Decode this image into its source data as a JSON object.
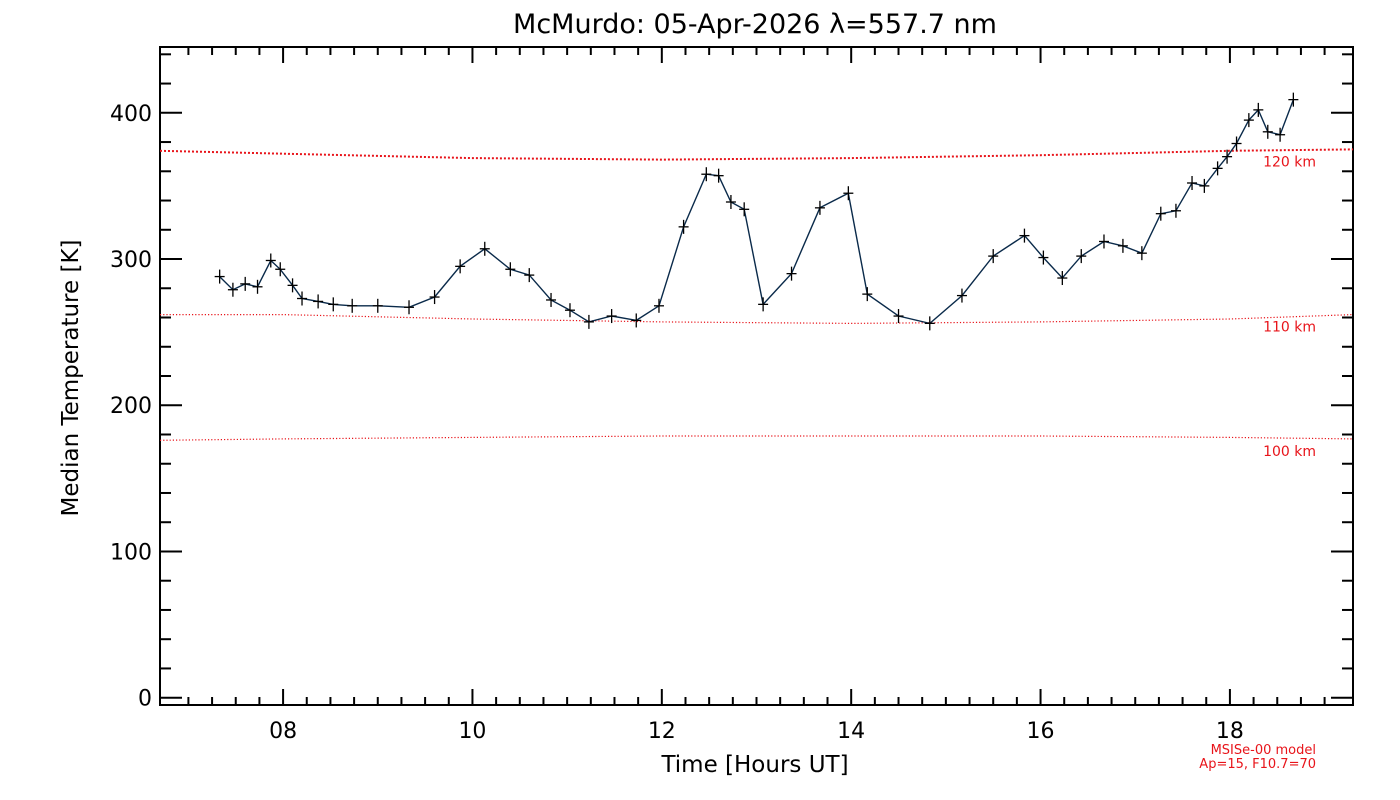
{
  "chart_data": {
    "type": "line",
    "title": "McMurdo: 05-Apr-2026 λ=557.7 nm",
    "xlabel": "Time [Hours UT]",
    "ylabel": "Median Temperature [K]",
    "xlim": [
      6.7,
      19.3
    ],
    "ylim": [
      -5,
      445
    ],
    "x_ticks": [
      8,
      10,
      12,
      14,
      16,
      18
    ],
    "x_tick_labels": [
      "08",
      "10",
      "12",
      "14",
      "16",
      "18"
    ],
    "y_ticks": [
      0,
      100,
      200,
      300,
      400
    ],
    "y_tick_labels": [
      "0",
      "100",
      "200",
      "300",
      "400"
    ],
    "grid": false,
    "series": [
      {
        "color": "#0a2a4a",
        "marker": "plus",
        "x": [
          7.33,
          7.47,
          7.6,
          7.73,
          7.87,
          7.97,
          8.1,
          8.2,
          8.37,
          8.53,
          8.73,
          9.0,
          9.33,
          9.6,
          9.87,
          10.13,
          10.4,
          10.6,
          10.83,
          11.03,
          11.23,
          11.47,
          11.73,
          11.97,
          12.23,
          12.47,
          12.6,
          12.73,
          12.87,
          13.07,
          13.37,
          13.67,
          13.97,
          14.17,
          14.5,
          14.83,
          15.17,
          15.5,
          15.83,
          16.03,
          16.23,
          16.43,
          16.67,
          16.87,
          17.07,
          17.27,
          17.43,
          17.6,
          17.73,
          17.87,
          17.97,
          18.07,
          18.2,
          18.3,
          18.4,
          18.53,
          18.67
        ],
        "y": [
          288,
          279,
          283,
          281,
          299,
          293,
          282,
          273,
          271,
          269,
          268,
          268,
          267,
          274,
          295,
          307,
          293,
          289,
          272,
          265,
          257,
          261,
          258,
          268,
          322,
          358,
          357,
          339,
          334,
          269,
          290,
          335,
          345,
          276,
          261,
          256,
          275,
          302,
          316,
          301,
          287,
          302,
          312,
          309,
          304,
          331,
          333,
          352,
          350,
          362,
          370,
          379,
          395,
          402,
          387,
          385,
          409
        ]
      }
    ],
    "model_curves": [
      {
        "label": "120 km",
        "color": "#e8141a",
        "x": [
          6.7,
          8,
          10,
          12,
          14,
          16,
          18,
          19.3
        ],
        "y": [
          374,
          372,
          369,
          368,
          369,
          371,
          374,
          375
        ]
      },
      {
        "label": "110 km",
        "color": "#e8141a",
        "x": [
          6.7,
          8,
          10,
          12,
          14,
          16,
          18,
          19.3
        ],
        "y": [
          262,
          262,
          259,
          257,
          256,
          257,
          259,
          262
        ]
      },
      {
        "label": "100 km",
        "color": "#e8141a",
        "x": [
          6.7,
          8,
          10,
          12,
          14,
          16,
          18,
          19.3
        ],
        "y": [
          176,
          177,
          178,
          179,
          179,
          179,
          178,
          177
        ]
      }
    ],
    "model_note": [
      "MSISe-00 model",
      "Ap=15, F10.7=70"
    ]
  }
}
